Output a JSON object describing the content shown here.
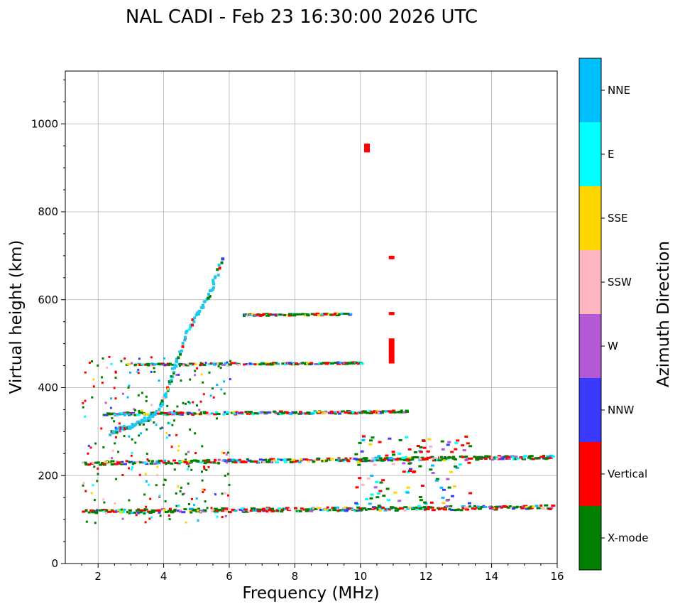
{
  "chart_data": {
    "type": "scatter",
    "title": "NAL CADI - Feb 23 16:30:00 2026 UTC",
    "xlabel": "Frequency (MHz)",
    "ylabel": "Virtual height (km)",
    "xlim": [
      1,
      16
    ],
    "ylim": [
      0,
      1120
    ],
    "xticks": [
      2,
      4,
      6,
      8,
      10,
      12,
      14,
      16
    ],
    "yticks": [
      0,
      200,
      400,
      600,
      800,
      1000
    ],
    "grid": true,
    "colorbar": {
      "label": "Azimuth Direction",
      "categories": [
        {
          "name": "X-mode",
          "color": "#008000"
        },
        {
          "name": "Vertical",
          "color": "#ff0000"
        },
        {
          "name": "NNW",
          "color": "#3a3aff"
        },
        {
          "name": "W",
          "color": "#b459d6"
        },
        {
          "name": "SSW",
          "color": "#ffb6c1"
        },
        {
          "name": "SSE",
          "color": "#ffd700"
        },
        {
          "name": "E",
          "color": "#00ffff"
        },
        {
          "name": "NNE",
          "color": "#00bfff"
        }
      ]
    },
    "layers": [
      {
        "name": "E-layer echoes",
        "f_start": 1.5,
        "f_end": 15.8,
        "h_start": 118,
        "h_end": 128,
        "spread": 9
      },
      {
        "name": "F-layer echoes",
        "f_start": 1.5,
        "f_end": 15.8,
        "h_start": 228,
        "h_end": 242,
        "spread": 8
      },
      {
        "name": "2F echoes",
        "f_start": 2.1,
        "f_end": 11.4,
        "h_start": 340,
        "h_end": 345,
        "spread": 6
      },
      {
        "name": "3F echoes",
        "f_start": 2.8,
        "f_end": 10.0,
        "h_start": 452,
        "h_end": 456,
        "spread": 4
      },
      {
        "name": "4F echoes",
        "f_start": 6.3,
        "f_end": 9.7,
        "h_start": 565,
        "h_end": 567,
        "spread": 4
      }
    ],
    "traces": [
      {
        "name": "F-trace rising",
        "points": [
          [
            2.35,
            295
          ],
          [
            2.6,
            305
          ],
          [
            2.9,
            310
          ],
          [
            3.2,
            318
          ],
          [
            3.5,
            330
          ],
          [
            3.8,
            350
          ],
          [
            4.0,
            380
          ],
          [
            4.2,
            425
          ],
          [
            4.4,
            470
          ],
          [
            4.7,
            530
          ],
          [
            5.0,
            570
          ],
          [
            5.3,
            600
          ],
          [
            5.5,
            640
          ],
          [
            5.8,
            700
          ]
        ]
      }
    ],
    "blocks": [
      {
        "f": 10.2,
        "h_min": 935,
        "h_max": 955,
        "azimuth": "Vertical"
      },
      {
        "f": 10.95,
        "h_min": 455,
        "h_max": 512,
        "azimuth": "Vertical"
      },
      {
        "f": 10.95,
        "h_min": 565,
        "h_max": 572,
        "azimuth": "Vertical"
      },
      {
        "f": 10.95,
        "h_min": 692,
        "h_max": 700,
        "azimuth": "Vertical"
      }
    ]
  }
}
